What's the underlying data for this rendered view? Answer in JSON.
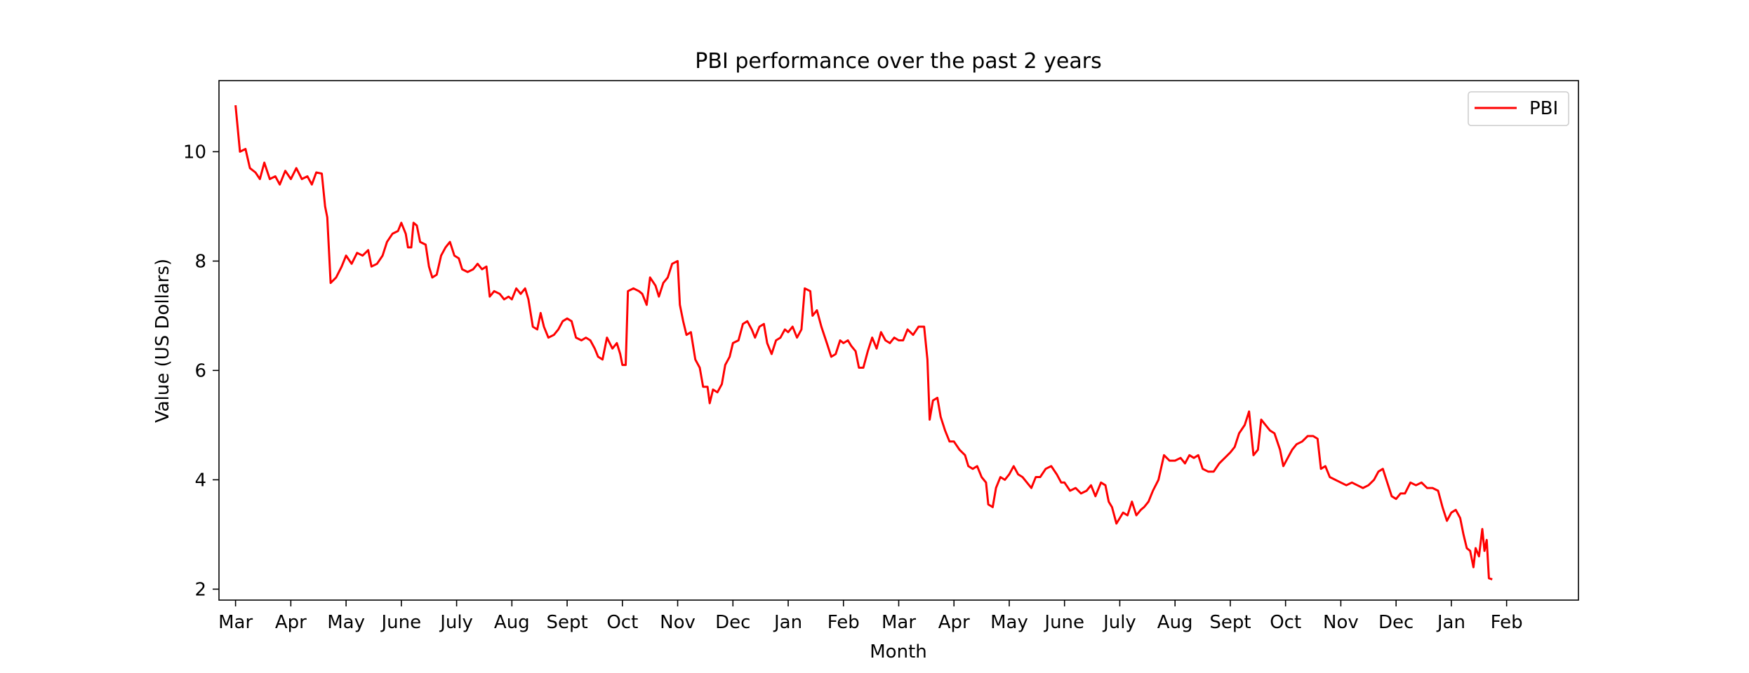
{
  "chart_data": {
    "type": "line",
    "title": "PBI performance over the past 2 years",
    "xlabel": "Month",
    "ylabel": "Value (US Dollars)",
    "x_ticks": [
      "Mar",
      "Apr",
      "May",
      "June",
      "July",
      "Aug",
      "Sept",
      "Oct",
      "Nov",
      "Dec",
      "Jan",
      "Feb",
      "Mar",
      "Apr",
      "May",
      "June",
      "July",
      "Aug",
      "Sept",
      "Oct",
      "Nov",
      "Dec",
      "Jan",
      "Feb"
    ],
    "y_ticks": [
      2,
      4,
      6,
      8,
      10
    ],
    "xlim": [
      -0.3,
      24.3
    ],
    "ylim": [
      1.8,
      11.3
    ],
    "legend": {
      "position": "top-right",
      "entries": [
        "PBI"
      ]
    },
    "grid": false,
    "series": [
      {
        "name": "PBI",
        "color": "#ff0000",
        "points": [
          [
            0.0,
            10.85
          ],
          [
            0.08,
            10.0
          ],
          [
            0.18,
            10.05
          ],
          [
            0.26,
            9.7
          ],
          [
            0.36,
            9.62
          ],
          [
            0.44,
            9.5
          ],
          [
            0.52,
            9.8
          ],
          [
            0.62,
            9.5
          ],
          [
            0.72,
            9.55
          ],
          [
            0.8,
            9.4
          ],
          [
            0.9,
            9.65
          ],
          [
            1.0,
            9.5
          ],
          [
            1.1,
            9.7
          ],
          [
            1.2,
            9.5
          ],
          [
            1.3,
            9.55
          ],
          [
            1.38,
            9.4
          ],
          [
            1.46,
            9.62
          ],
          [
            1.56,
            9.6
          ],
          [
            1.62,
            9.0
          ],
          [
            1.66,
            8.8
          ],
          [
            1.72,
            7.6
          ],
          [
            1.82,
            7.7
          ],
          [
            1.92,
            7.9
          ],
          [
            2.0,
            8.1
          ],
          [
            2.1,
            7.95
          ],
          [
            2.2,
            8.15
          ],
          [
            2.3,
            8.1
          ],
          [
            2.4,
            8.2
          ],
          [
            2.46,
            7.9
          ],
          [
            2.56,
            7.95
          ],
          [
            2.66,
            8.1
          ],
          [
            2.74,
            8.35
          ],
          [
            2.84,
            8.5
          ],
          [
            2.94,
            8.55
          ],
          [
            3.0,
            8.7
          ],
          [
            3.08,
            8.5
          ],
          [
            3.12,
            8.25
          ],
          [
            3.18,
            8.25
          ],
          [
            3.22,
            8.7
          ],
          [
            3.28,
            8.65
          ],
          [
            3.34,
            8.35
          ],
          [
            3.44,
            8.3
          ],
          [
            3.5,
            7.9
          ],
          [
            3.56,
            7.7
          ],
          [
            3.64,
            7.75
          ],
          [
            3.72,
            8.1
          ],
          [
            3.8,
            8.25
          ],
          [
            3.88,
            8.35
          ],
          [
            3.96,
            8.1
          ],
          [
            4.04,
            8.05
          ],
          [
            4.1,
            7.85
          ],
          [
            4.2,
            7.8
          ],
          [
            4.3,
            7.85
          ],
          [
            4.38,
            7.95
          ],
          [
            4.46,
            7.85
          ],
          [
            4.54,
            7.9
          ],
          [
            4.6,
            7.35
          ],
          [
            4.68,
            7.45
          ],
          [
            4.78,
            7.4
          ],
          [
            4.86,
            7.3
          ],
          [
            4.94,
            7.35
          ],
          [
            5.0,
            7.3
          ],
          [
            5.08,
            7.5
          ],
          [
            5.16,
            7.4
          ],
          [
            5.24,
            7.5
          ],
          [
            5.3,
            7.3
          ],
          [
            5.38,
            6.8
          ],
          [
            5.46,
            6.75
          ],
          [
            5.52,
            7.05
          ],
          [
            5.58,
            6.8
          ],
          [
            5.66,
            6.6
          ],
          [
            5.76,
            6.65
          ],
          [
            5.84,
            6.75
          ],
          [
            5.92,
            6.9
          ],
          [
            6.0,
            6.95
          ],
          [
            6.08,
            6.9
          ],
          [
            6.16,
            6.6
          ],
          [
            6.26,
            6.55
          ],
          [
            6.34,
            6.6
          ],
          [
            6.42,
            6.55
          ],
          [
            6.5,
            6.4
          ],
          [
            6.56,
            6.25
          ],
          [
            6.64,
            6.2
          ],
          [
            6.72,
            6.6
          ],
          [
            6.82,
            6.4
          ],
          [
            6.9,
            6.5
          ],
          [
            6.96,
            6.3
          ],
          [
            7.0,
            6.1
          ],
          [
            7.06,
            6.1
          ],
          [
            7.1,
            7.45
          ],
          [
            7.2,
            7.5
          ],
          [
            7.3,
            7.45
          ],
          [
            7.36,
            7.4
          ],
          [
            7.44,
            7.2
          ],
          [
            7.5,
            7.7
          ],
          [
            7.6,
            7.55
          ],
          [
            7.66,
            7.35
          ],
          [
            7.74,
            7.6
          ],
          [
            7.82,
            7.7
          ],
          [
            7.9,
            7.95
          ],
          [
            8.0,
            8.0
          ],
          [
            8.04,
            7.2
          ],
          [
            8.1,
            6.9
          ],
          [
            8.16,
            6.65
          ],
          [
            8.24,
            6.7
          ],
          [
            8.32,
            6.2
          ],
          [
            8.4,
            6.05
          ],
          [
            8.46,
            5.7
          ],
          [
            8.54,
            5.7
          ],
          [
            8.58,
            5.4
          ],
          [
            8.64,
            5.65
          ],
          [
            8.72,
            5.6
          ],
          [
            8.8,
            5.75
          ],
          [
            8.86,
            6.1
          ],
          [
            8.94,
            6.25
          ],
          [
            9.0,
            6.5
          ],
          [
            9.1,
            6.55
          ],
          [
            9.18,
            6.85
          ],
          [
            9.26,
            6.9
          ],
          [
            9.34,
            6.75
          ],
          [
            9.4,
            6.6
          ],
          [
            9.48,
            6.8
          ],
          [
            9.56,
            6.85
          ],
          [
            9.62,
            6.5
          ],
          [
            9.7,
            6.3
          ],
          [
            9.78,
            6.55
          ],
          [
            9.86,
            6.6
          ],
          [
            9.94,
            6.75
          ],
          [
            10.0,
            6.7
          ],
          [
            10.08,
            6.8
          ],
          [
            10.16,
            6.6
          ],
          [
            10.24,
            6.75
          ],
          [
            10.3,
            7.5
          ],
          [
            10.4,
            7.45
          ],
          [
            10.44,
            7.0
          ],
          [
            10.52,
            7.1
          ],
          [
            10.6,
            6.8
          ],
          [
            10.7,
            6.5
          ],
          [
            10.78,
            6.25
          ],
          [
            10.86,
            6.3
          ],
          [
            10.94,
            6.55
          ],
          [
            11.0,
            6.5
          ],
          [
            11.08,
            6.55
          ],
          [
            11.14,
            6.45
          ],
          [
            11.22,
            6.35
          ],
          [
            11.28,
            6.05
          ],
          [
            11.36,
            6.05
          ],
          [
            11.44,
            6.35
          ],
          [
            11.52,
            6.6
          ],
          [
            11.6,
            6.4
          ],
          [
            11.68,
            6.7
          ],
          [
            11.76,
            6.55
          ],
          [
            11.84,
            6.5
          ],
          [
            11.92,
            6.6
          ],
          [
            12.0,
            6.55
          ],
          [
            12.08,
            6.55
          ],
          [
            12.16,
            6.75
          ],
          [
            12.26,
            6.65
          ],
          [
            12.36,
            6.8
          ],
          [
            12.46,
            6.8
          ],
          [
            12.52,
            6.2
          ],
          [
            12.56,
            5.1
          ],
          [
            12.62,
            5.45
          ],
          [
            12.7,
            5.5
          ],
          [
            12.76,
            5.15
          ],
          [
            12.84,
            4.9
          ],
          [
            12.92,
            4.7
          ],
          [
            13.0,
            4.7
          ],
          [
            13.1,
            4.55
          ],
          [
            13.2,
            4.45
          ],
          [
            13.26,
            4.25
          ],
          [
            13.34,
            4.2
          ],
          [
            13.42,
            4.25
          ],
          [
            13.5,
            4.05
          ],
          [
            13.58,
            3.95
          ],
          [
            13.62,
            3.55
          ],
          [
            13.7,
            3.5
          ],
          [
            13.76,
            3.85
          ],
          [
            13.84,
            4.05
          ],
          [
            13.92,
            4.0
          ],
          [
            14.0,
            4.1
          ],
          [
            14.08,
            4.25
          ],
          [
            14.16,
            4.1
          ],
          [
            14.24,
            4.05
          ],
          [
            14.32,
            3.95
          ],
          [
            14.4,
            3.85
          ],
          [
            14.48,
            4.05
          ],
          [
            14.56,
            4.05
          ],
          [
            14.66,
            4.2
          ],
          [
            14.76,
            4.25
          ],
          [
            14.86,
            4.1
          ],
          [
            14.94,
            3.95
          ],
          [
            15.0,
            3.95
          ],
          [
            15.1,
            3.8
          ],
          [
            15.2,
            3.85
          ],
          [
            15.3,
            3.75
          ],
          [
            15.4,
            3.8
          ],
          [
            15.48,
            3.9
          ],
          [
            15.56,
            3.7
          ],
          [
            15.66,
            3.95
          ],
          [
            15.74,
            3.9
          ],
          [
            15.8,
            3.6
          ],
          [
            15.86,
            3.5
          ],
          [
            15.94,
            3.2
          ],
          [
            16.0,
            3.3
          ],
          [
            16.06,
            3.4
          ],
          [
            16.14,
            3.35
          ],
          [
            16.22,
            3.6
          ],
          [
            16.3,
            3.35
          ],
          [
            16.38,
            3.45
          ],
          [
            16.44,
            3.5
          ],
          [
            16.52,
            3.6
          ],
          [
            16.6,
            3.8
          ],
          [
            16.7,
            4.0
          ],
          [
            16.8,
            4.45
          ],
          [
            16.9,
            4.35
          ],
          [
            17.0,
            4.35
          ],
          [
            17.1,
            4.4
          ],
          [
            17.18,
            4.3
          ],
          [
            17.26,
            4.45
          ],
          [
            17.34,
            4.4
          ],
          [
            17.42,
            4.45
          ],
          [
            17.5,
            4.2
          ],
          [
            17.6,
            4.15
          ],
          [
            17.7,
            4.15
          ],
          [
            17.8,
            4.3
          ],
          [
            17.9,
            4.4
          ],
          [
            18.0,
            4.5
          ],
          [
            18.08,
            4.6
          ],
          [
            18.16,
            4.85
          ],
          [
            18.26,
            5.0
          ],
          [
            18.34,
            5.25
          ],
          [
            18.42,
            4.45
          ],
          [
            18.5,
            4.55
          ],
          [
            18.56,
            5.1
          ],
          [
            18.64,
            5.0
          ],
          [
            18.72,
            4.9
          ],
          [
            18.8,
            4.85
          ],
          [
            18.9,
            4.55
          ],
          [
            18.96,
            4.25
          ],
          [
            19.04,
            4.4
          ],
          [
            19.12,
            4.55
          ],
          [
            19.2,
            4.65
          ],
          [
            19.3,
            4.7
          ],
          [
            19.4,
            4.8
          ],
          [
            19.5,
            4.8
          ],
          [
            19.58,
            4.75
          ],
          [
            19.64,
            4.2
          ],
          [
            19.72,
            4.25
          ],
          [
            19.8,
            4.05
          ],
          [
            19.9,
            4.0
          ],
          [
            20.0,
            3.95
          ],
          [
            20.1,
            3.9
          ],
          [
            20.2,
            3.95
          ],
          [
            20.3,
            3.9
          ],
          [
            20.4,
            3.85
          ],
          [
            20.5,
            3.9
          ],
          [
            20.6,
            4.0
          ],
          [
            20.68,
            4.15
          ],
          [
            20.76,
            4.2
          ],
          [
            20.84,
            3.95
          ],
          [
            20.92,
            3.7
          ],
          [
            21.0,
            3.65
          ],
          [
            21.08,
            3.75
          ],
          [
            21.16,
            3.75
          ],
          [
            21.26,
            3.95
          ],
          [
            21.36,
            3.9
          ],
          [
            21.46,
            3.95
          ],
          [
            21.56,
            3.85
          ],
          [
            21.66,
            3.85
          ],
          [
            21.76,
            3.8
          ],
          [
            21.84,
            3.5
          ],
          [
            21.92,
            3.25
          ],
          [
            22.0,
            3.4
          ],
          [
            22.08,
            3.45
          ],
          [
            22.16,
            3.3
          ],
          [
            22.22,
            3.0
          ],
          [
            22.28,
            2.75
          ],
          [
            22.34,
            2.7
          ],
          [
            22.4,
            2.4
          ],
          [
            22.44,
            2.75
          ],
          [
            22.5,
            2.6
          ],
          [
            22.56,
            3.1
          ],
          [
            22.6,
            2.7
          ],
          [
            22.64,
            2.9
          ],
          [
            22.68,
            2.2
          ],
          [
            22.74,
            2.18
          ]
        ]
      }
    ]
  }
}
